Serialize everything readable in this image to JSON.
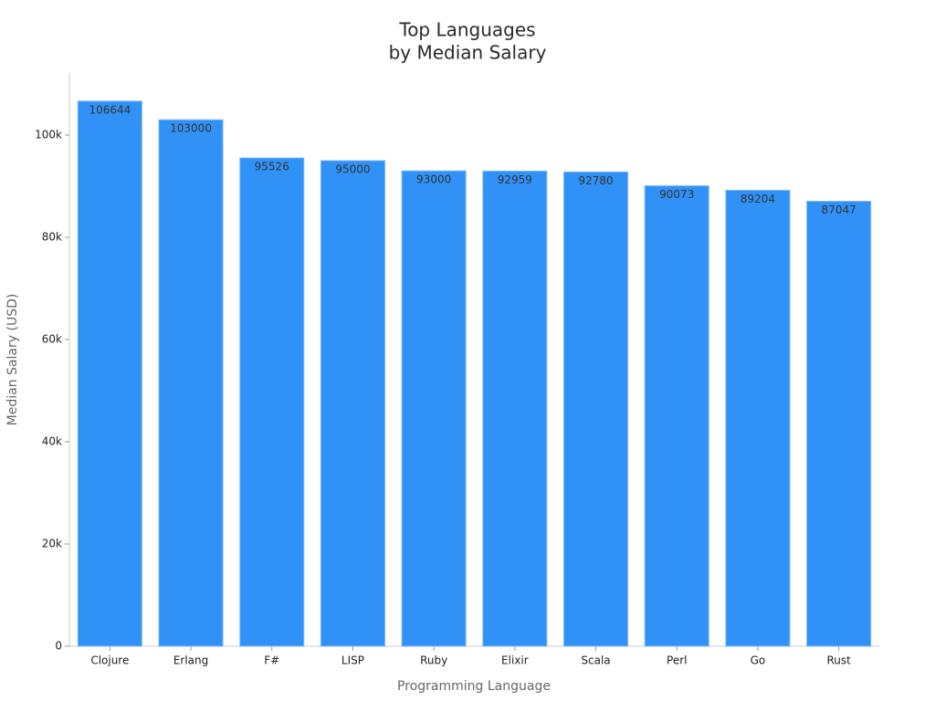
{
  "chart_data": {
    "type": "bar",
    "title": [
      "Top Languages",
      "by Median Salary"
    ],
    "x_label": "Programming Language",
    "y_label": "Median Salary (USD)",
    "categories": [
      "Clojure",
      "Erlang",
      "F#",
      "LISP",
      "Ruby",
      "Elixir",
      "Scala",
      "Perl",
      "Go",
      "Rust"
    ],
    "values": [
      106644,
      103000,
      95526,
      95000,
      93000,
      92959,
      92780,
      90073,
      89204,
      87047
    ],
    "color": "#3092f7",
    "ylim": [
      0,
      112000
    ],
    "yticks": [
      0,
      {
        "value": 20000,
        "label": "20k"
      },
      {
        "value": 40000,
        "label": "40k"
      },
      {
        "value": 60000,
        "label": "60k"
      },
      {
        "value": 80000,
        "label": "80k"
      },
      {
        "value": 100000,
        "label": "100k"
      }
    ],
    "grid": false,
    "data_labels": true
  }
}
